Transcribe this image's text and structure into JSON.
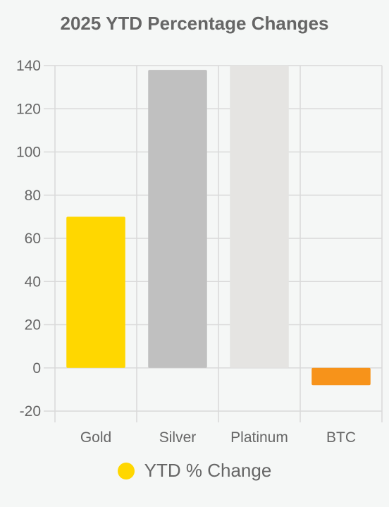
{
  "chart_data": {
    "type": "bar",
    "title": "2025 YTD Percentage Changes",
    "categories": [
      "Gold",
      "Silver",
      "Platinum",
      "BTC"
    ],
    "series": [
      {
        "name": "YTD % Change",
        "values": [
          70,
          138,
          140,
          -8
        ],
        "colors": [
          "#ffd700",
          "#c0c0c0",
          "#e5e4e2",
          "#f7931a"
        ]
      }
    ],
    "ylim": [
      -20,
      140
    ],
    "yticks": [
      140,
      120,
      100,
      80,
      60,
      40,
      20,
      0,
      -20
    ],
    "grid": true,
    "legend_position": "bottom",
    "legend_color": "#ffd700"
  }
}
